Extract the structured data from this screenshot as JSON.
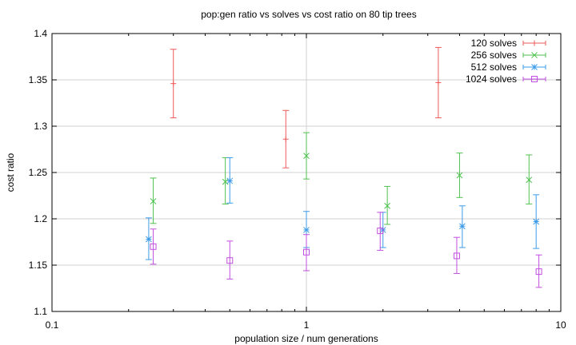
{
  "chart_data": {
    "type": "scatter",
    "title": "pop:gen ratio vs solves vs cost ratio on 80 tip trees",
    "xlabel": "population size / num generations",
    "ylabel": "cost ratio",
    "xscale": "log",
    "xlim": [
      0.1,
      10
    ],
    "ylim": [
      1.1,
      1.4
    ],
    "x_ticks": [
      0.1,
      1,
      10
    ],
    "x_tick_labels": [
      "0.1",
      "1",
      "10"
    ],
    "y_ticks": [
      1.1,
      1.15,
      1.2,
      1.25,
      1.3,
      1.35,
      1.4
    ],
    "y_tick_labels": [
      "1.1",
      "1.15",
      "1.2",
      "1.25",
      "1.3",
      "1.35",
      "1.4"
    ],
    "grid": "horizontal",
    "legend_position": "top-right",
    "error_bars": true,
    "series": [
      {
        "name": "120 solves",
        "color": "#ef5a5a",
        "marker": "plus",
        "points": [
          {
            "x": 0.3,
            "y": 1.346,
            "low": 1.309,
            "high": 1.383
          },
          {
            "x": 0.83,
            "y": 1.286,
            "low": 1.255,
            "high": 1.317
          },
          {
            "x": 3.3,
            "y": 1.347,
            "low": 1.309,
            "high": 1.385
          }
        ]
      },
      {
        "name": "256 solves",
        "color": "#4fc24f",
        "marker": "cross",
        "points": [
          {
            "x": 0.25,
            "y": 1.219,
            "low": 1.195,
            "high": 1.244
          },
          {
            "x": 0.48,
            "y": 1.24,
            "low": 1.216,
            "high": 1.266
          },
          {
            "x": 1.0,
            "y": 1.268,
            "low": 1.243,
            "high": 1.293
          },
          {
            "x": 2.08,
            "y": 1.214,
            "low": 1.194,
            "high": 1.235
          },
          {
            "x": 4.0,
            "y": 1.247,
            "low": 1.223,
            "high": 1.271
          },
          {
            "x": 7.5,
            "y": 1.242,
            "low": 1.216,
            "high": 1.269
          }
        ]
      },
      {
        "name": "512 solves",
        "color": "#3d9be9",
        "marker": "star",
        "points": [
          {
            "x": 0.24,
            "y": 1.178,
            "low": 1.156,
            "high": 1.201
          },
          {
            "x": 0.5,
            "y": 1.241,
            "low": 1.217,
            "high": 1.266
          },
          {
            "x": 1.0,
            "y": 1.188,
            "low": 1.169,
            "high": 1.208
          },
          {
            "x": 2.0,
            "y": 1.188,
            "low": 1.169,
            "high": 1.207
          },
          {
            "x": 4.1,
            "y": 1.192,
            "low": 1.169,
            "high": 1.214
          },
          {
            "x": 8.0,
            "y": 1.197,
            "low": 1.168,
            "high": 1.226
          }
        ]
      },
      {
        "name": "1024 solves",
        "color": "#c24fe0",
        "marker": "square",
        "points": [
          {
            "x": 0.25,
            "y": 1.17,
            "low": 1.151,
            "high": 1.189
          },
          {
            "x": 0.5,
            "y": 1.155,
            "low": 1.135,
            "high": 1.176
          },
          {
            "x": 1.0,
            "y": 1.164,
            "low": 1.144,
            "high": 1.183
          },
          {
            "x": 1.95,
            "y": 1.187,
            "low": 1.166,
            "high": 1.207
          },
          {
            "x": 3.9,
            "y": 1.16,
            "low": 1.141,
            "high": 1.18
          },
          {
            "x": 8.2,
            "y": 1.143,
            "low": 1.126,
            "high": 1.161
          }
        ]
      }
    ]
  }
}
